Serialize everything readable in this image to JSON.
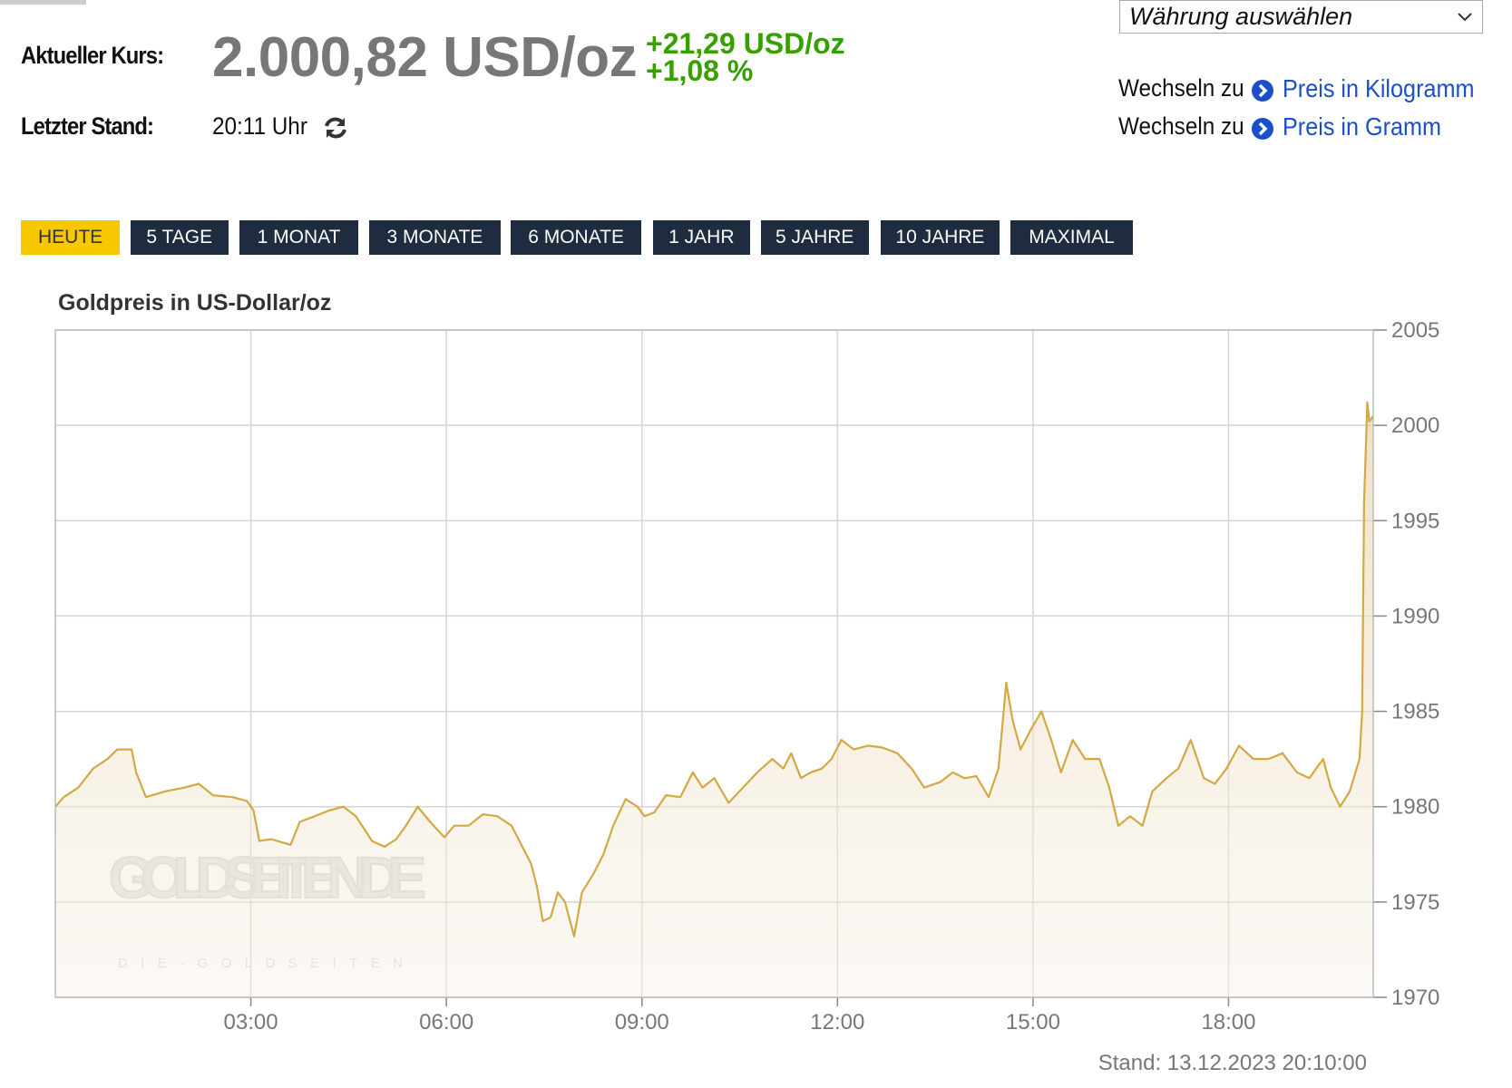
{
  "header": {
    "price_label": "Aktueller Kurs:",
    "price": "2.000,82 USD/oz",
    "change_abs": "+21,29 USD/oz",
    "change_pct": "+1,08 %",
    "time_label": "Letzter Stand:",
    "time": "20:11 Uhr"
  },
  "currency_select": "Währung auswählen",
  "links": [
    {
      "prefix": "Wechseln zu",
      "label": "Preis in Kilogramm"
    },
    {
      "prefix": "Wechseln zu",
      "label": "Preis in Gramm"
    }
  ],
  "range_buttons": [
    {
      "label": "HEUTE",
      "selected": true
    },
    {
      "label": "5 TAGE"
    },
    {
      "label": "1 MONAT"
    },
    {
      "label": "3 MONATE"
    },
    {
      "label": "6 MONATE"
    },
    {
      "label": "1 JAHR"
    },
    {
      "label": "5 JAHRE"
    },
    {
      "label": "10 JAHRE"
    },
    {
      "label": "MAXIMAL"
    }
  ],
  "chart_data": {
    "type": "line",
    "title": "Goldpreis in US-Dollar/oz",
    "x": [
      0.0,
      0.13,
      0.35,
      0.58,
      0.8,
      0.95,
      1.17,
      1.24,
      1.39,
      1.68,
      1.98,
      2.2,
      2.42,
      2.72,
      2.94,
      3.04,
      3.13,
      3.31,
      3.61,
      3.75,
      3.98,
      4.2,
      4.42,
      4.61,
      4.86,
      5.05,
      5.23,
      5.38,
      5.56,
      5.75,
      5.97,
      6.12,
      6.34,
      6.56,
      6.78,
      7.0,
      7.15,
      7.3,
      7.39,
      7.48,
      7.6,
      7.71,
      7.82,
      7.96,
      8.08,
      8.26,
      8.41,
      8.56,
      8.75,
      8.93,
      9.04,
      9.19,
      9.37,
      9.59,
      9.78,
      9.93,
      10.11,
      10.33,
      10.55,
      10.77,
      11.0,
      11.17,
      11.29,
      11.44,
      11.59,
      11.76,
      11.91,
      12.06,
      12.25,
      12.47,
      12.69,
      12.92,
      13.14,
      13.33,
      13.58,
      13.77,
      13.95,
      14.13,
      14.32,
      14.47,
      14.59,
      14.69,
      14.81,
      14.96,
      15.13,
      15.28,
      15.43,
      15.61,
      15.8,
      16.02,
      16.17,
      16.31,
      16.49,
      16.68,
      16.83,
      17.05,
      17.23,
      17.42,
      17.62,
      17.79,
      17.97,
      18.16,
      18.38,
      18.61,
      18.83,
      19.05,
      19.24,
      19.45,
      19.57,
      19.71,
      19.86,
      20.01,
      20.05,
      20.08,
      20.13,
      20.16,
      20.22
    ],
    "values": [
      1980.0,
      1980.5,
      1981.0,
      1982.0,
      1982.5,
      1983.0,
      1983.0,
      1981.8,
      1980.5,
      1980.8,
      1981.0,
      1981.2,
      1980.6,
      1980.5,
      1980.3,
      1979.8,
      1978.2,
      1978.3,
      1978.0,
      1979.2,
      1979.5,
      1979.8,
      1980.0,
      1979.5,
      1978.2,
      1977.9,
      1978.3,
      1979.0,
      1980.0,
      1979.2,
      1978.4,
      1979.0,
      1979.0,
      1979.6,
      1979.5,
      1979.0,
      1978.0,
      1977.0,
      1975.8,
      1974.0,
      1974.2,
      1975.5,
      1975.0,
      1973.2,
      1975.5,
      1976.5,
      1977.5,
      1979.0,
      1980.4,
      1980.0,
      1979.5,
      1979.7,
      1980.6,
      1980.5,
      1981.8,
      1981.0,
      1981.5,
      1980.2,
      1981.0,
      1981.8,
      1982.5,
      1982.0,
      1982.8,
      1981.5,
      1981.8,
      1982.0,
      1982.5,
      1983.5,
      1983.0,
      1983.2,
      1983.1,
      1982.8,
      1982.0,
      1981.0,
      1981.3,
      1981.8,
      1981.5,
      1981.6,
      1980.5,
      1982.0,
      1986.5,
      1984.5,
      1983.0,
      1984.0,
      1985.0,
      1983.5,
      1981.8,
      1983.5,
      1982.5,
      1982.5,
      1981.0,
      1979.0,
      1979.5,
      1979.0,
      1980.8,
      1981.5,
      1982.0,
      1983.5,
      1981.5,
      1981.2,
      1982.0,
      1983.2,
      1982.5,
      1982.5,
      1982.8,
      1981.8,
      1981.5,
      1982.5,
      1981.0,
      1980.0,
      1980.8,
      1982.5,
      1985.0,
      1996.0,
      2001.2,
      2000.2,
      2000.5
    ],
    "color": "#d4a843",
    "xlim": [
      0,
      20.22
    ],
    "xticks": [
      {
        "value": 3,
        "label": "03:00"
      },
      {
        "value": 6,
        "label": "06:00"
      },
      {
        "value": 9,
        "label": "09:00"
      },
      {
        "value": 12,
        "label": "12:00"
      },
      {
        "value": 15,
        "label": "15:00"
      },
      {
        "value": 18,
        "label": "18:00"
      }
    ],
    "ylim": [
      1970,
      2005
    ],
    "yticks": [
      1970,
      1975,
      1980,
      1985,
      1990,
      1995,
      2000,
      2005
    ],
    "grid": true,
    "watermark": "GOLDSEITEN.DE",
    "watermark_sub": "DIE-GOLDSEITEN",
    "footnote": "Stand: 13.12.2023 20:10:00"
  }
}
